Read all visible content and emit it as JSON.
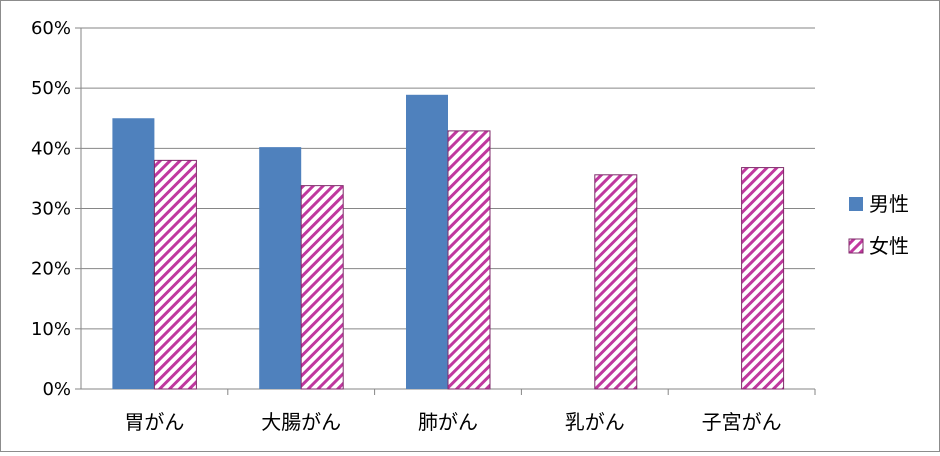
{
  "chart_data": {
    "type": "bar",
    "title": "",
    "xlabel": "",
    "ylabel": "",
    "categories": [
      "胃がん",
      "大腸がん",
      "肺がん",
      "乳がん",
      "子宮がん"
    ],
    "series": [
      {
        "name": "男性",
        "values": [
          45.0,
          40.2,
          48.9,
          null,
          null
        ],
        "color": "#4f81bd",
        "pattern": "solid"
      },
      {
        "name": "女性",
        "values": [
          38.0,
          33.8,
          42.9,
          35.6,
          36.8
        ],
        "color": "#c0389f",
        "pattern": "diagonal-stripes"
      }
    ],
    "ylim": [
      0,
      60
    ],
    "yticks": [
      "0%",
      "10%",
      "20%",
      "30%",
      "40%",
      "50%",
      "60%"
    ],
    "grid": true,
    "legend_position": "right"
  }
}
